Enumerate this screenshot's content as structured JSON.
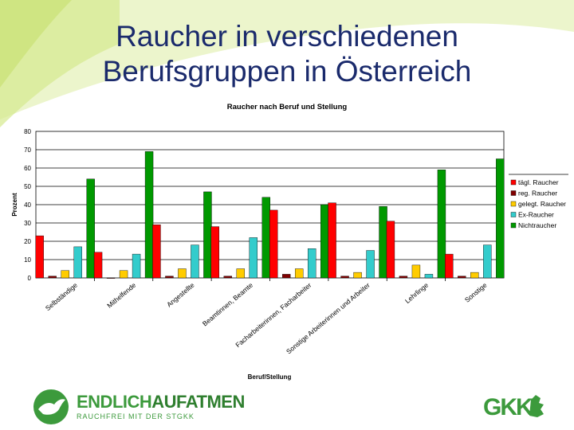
{
  "slide": {
    "title": "Raucher in verschiedenen Berufsgruppen in Österreich"
  },
  "colors": {
    "accent": "#1a2a6c",
    "swoosh": "#d6e98f",
    "logo_green": "#3c9a3c"
  },
  "chart_data": {
    "type": "bar",
    "title": "Raucher nach Beruf und Stellung",
    "xlabel": "Beruf/Stellung",
    "ylabel": "Prozent",
    "ylim": [
      0,
      80
    ],
    "yticks": [
      0,
      10,
      20,
      30,
      40,
      50,
      60,
      70,
      80
    ],
    "grid": true,
    "legend_position": "right",
    "categories": [
      "Selbständige",
      "Mithelfende",
      "Angestellte",
      "Beamtinnen, Beamte",
      "Facharbeiterinnen, Facharbeiter",
      "Sonstige Arbeiterinnen und Arbeiter",
      "Lehrlinge",
      "Sonstige"
    ],
    "series": [
      {
        "name": "tägl. Raucher",
        "color": "#ff0000",
        "values": [
          23,
          14,
          29,
          28,
          37,
          41,
          31,
          13
        ]
      },
      {
        "name": "reg. Raucher",
        "color": "#800000",
        "values": [
          1,
          0,
          1,
          1,
          2,
          1,
          1,
          1
        ]
      },
      {
        "name": "gelegt. Raucher",
        "color": "#ffcc00",
        "values": [
          4,
          4,
          5,
          5,
          5,
          3,
          7,
          3
        ]
      },
      {
        "name": "Ex-Raucher",
        "color": "#33cccc",
        "values": [
          17,
          13,
          18,
          22,
          16,
          15,
          2,
          18
        ]
      },
      {
        "name": "Nichtraucher",
        "color": "#009900",
        "values": [
          54,
          69,
          47,
          44,
          40,
          39,
          59,
          65
        ]
      }
    ]
  },
  "footer": {
    "logo_left_part1": "ENDLICH",
    "logo_left_part2": "AUFATMEN",
    "logo_left_sub": "RAUCHFREI MIT DER STGKK",
    "logo_right_text": "GKK"
  }
}
